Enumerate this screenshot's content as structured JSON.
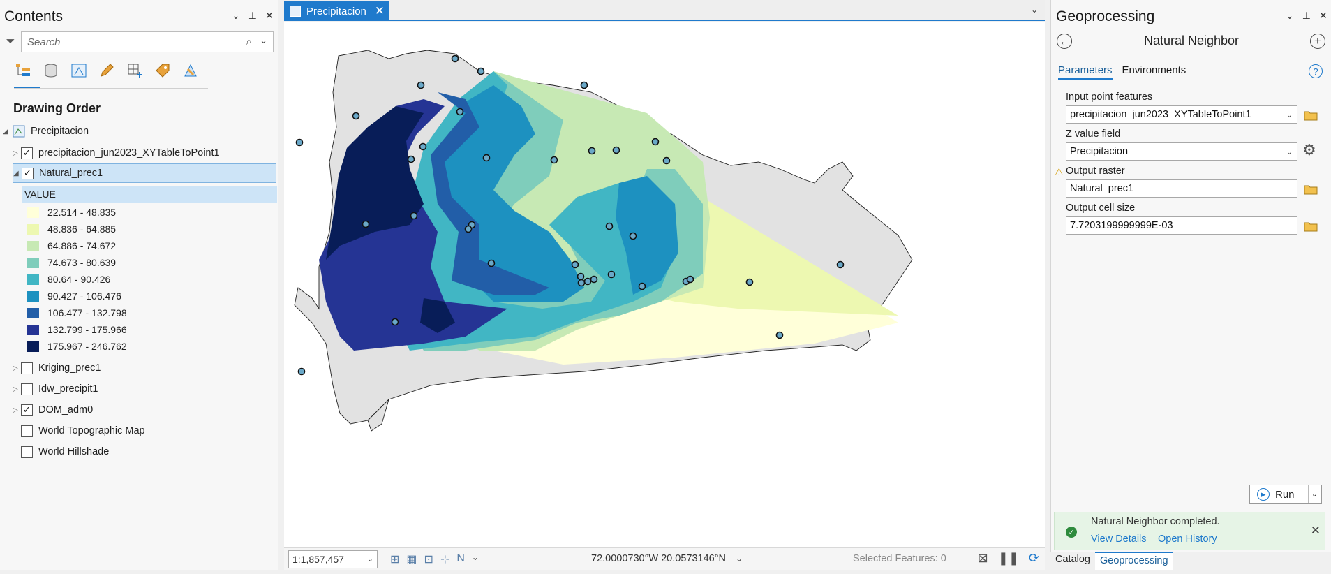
{
  "contents": {
    "title": "Contents",
    "search_placeholder": "Search",
    "drawing_order": "Drawing Order",
    "map_name": "Precipitacion",
    "layers": [
      {
        "name": "precipitacion_jun2023_XYTableToPoint1",
        "checked": true
      },
      {
        "name": "Natural_prec1",
        "checked": true
      },
      {
        "name": "Kriging_prec1",
        "checked": false
      },
      {
        "name": "Idw_precipit1",
        "checked": false
      },
      {
        "name": "DOM_adm0",
        "checked": true
      },
      {
        "name": "World Topographic Map",
        "checked": false
      },
      {
        "name": "World Hillshade",
        "checked": false
      }
    ],
    "legend_header": "VALUE",
    "legend": [
      {
        "label": "22.514 - 48.835",
        "color": "#ffffd9"
      },
      {
        "label": "48.836 - 64.885",
        "color": "#edf8b1"
      },
      {
        "label": "64.886 - 74.672",
        "color": "#c7e9b4"
      },
      {
        "label": "74.673 - 80.639",
        "color": "#7fcdbb"
      },
      {
        "label": "80.64 - 90.426",
        "color": "#41b6c4"
      },
      {
        "label": "90.427 - 106.476",
        "color": "#1d91c0"
      },
      {
        "label": "106.477 - 132.798",
        "color": "#225ea8"
      },
      {
        "label": "132.799 - 175.966",
        "color": "#253494"
      },
      {
        "label": "175.967 - 246.762",
        "color": "#081d58"
      }
    ]
  },
  "map": {
    "tab_label": "Precipitacion",
    "scale": "1:1,857,457",
    "coordinates": "72.0000730°W 20.0573146°N",
    "selected_features": "Selected Features: 0"
  },
  "geoprocessing": {
    "title": "Geoprocessing",
    "tool_name": "Natural Neighbor",
    "tabs": [
      "Parameters",
      "Environments"
    ],
    "params": [
      {
        "label": "Input point features",
        "value": "precipitacion_jun2023_XYTableToPoint1"
      },
      {
        "label": "Z value field",
        "value": "Precipitacion"
      },
      {
        "label": "Output raster",
        "value": "Natural_prec1"
      },
      {
        "label": "Output cell size",
        "value": "7.7203199999999E-03"
      }
    ],
    "run_label": "Run",
    "toast_message": "Natural Neighbor completed.",
    "view_details": "View Details",
    "open_history": "Open History",
    "bottom_tabs": [
      "Catalog",
      "Geoprocessing"
    ]
  }
}
